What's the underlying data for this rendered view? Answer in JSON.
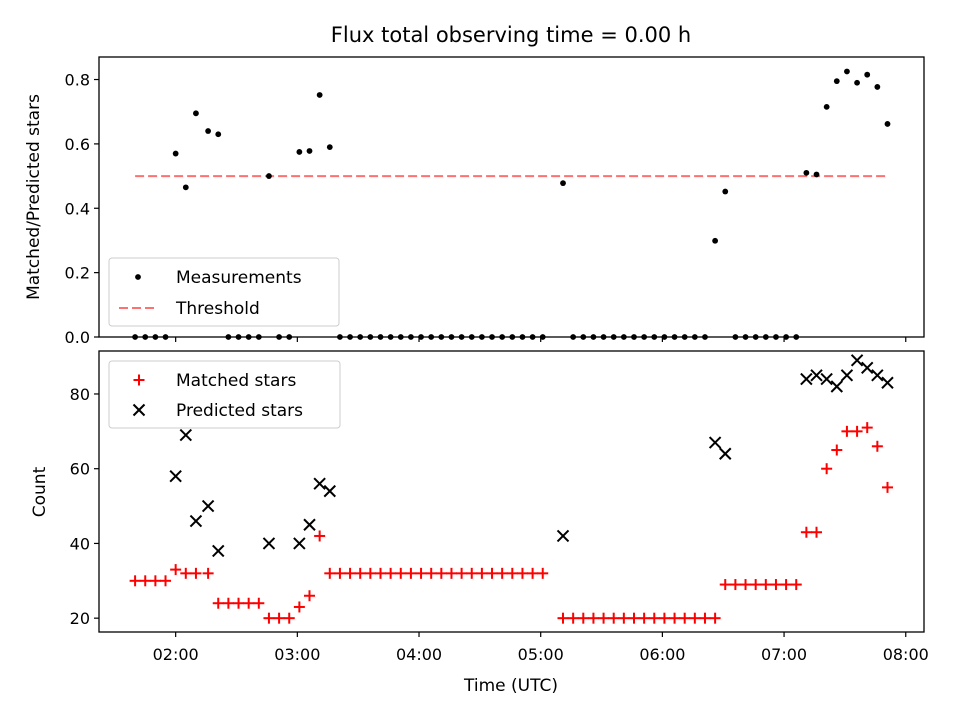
{
  "title": "Flux total observing time = 0.00 h",
  "chart_data": [
    {
      "type": "scatter",
      "ylabel": "Matched/Predicted stars",
      "xlabel": "",
      "ylim": [
        0,
        0.87
      ],
      "xlim_hours": [
        1.37,
        8.15
      ],
      "yticks": [
        0.0,
        0.2,
        0.4,
        0.6,
        0.8
      ],
      "ytick_labels": [
        "0.0",
        "0.2",
        "0.4",
        "0.6",
        "0.8"
      ],
      "legend_position": "lower-left",
      "series": [
        {
          "name": "Measurements",
          "color": "#000000",
          "marker": "dot",
          "points": [
            [
              "01:40",
              0.0
            ],
            [
              "01:45",
              0.0
            ],
            [
              "01:50",
              0.0
            ],
            [
              "01:55",
              0.0
            ],
            [
              "02:00",
              0.57
            ],
            [
              "02:05",
              0.465
            ],
            [
              "02:10",
              0.695
            ],
            [
              "02:16",
              0.64
            ],
            [
              "02:21",
              0.63
            ],
            [
              "02:26",
              0.0
            ],
            [
              "02:31",
              0.0
            ],
            [
              "02:36",
              0.0
            ],
            [
              "02:41",
              0.0
            ],
            [
              "02:46",
              0.5
            ],
            [
              "02:51",
              0.0
            ],
            [
              "02:56",
              0.0
            ],
            [
              "03:01",
              0.575
            ],
            [
              "03:06",
              0.578
            ],
            [
              "03:11",
              0.752
            ],
            [
              "03:16",
              0.59
            ],
            [
              "03:21",
              0.0
            ],
            [
              "03:26",
              0.0
            ],
            [
              "03:31",
              0.0
            ],
            [
              "03:36",
              0.0
            ],
            [
              "03:41",
              0.0
            ],
            [
              "03:46",
              0.0
            ],
            [
              "03:51",
              0.0
            ],
            [
              "03:56",
              0.0
            ],
            [
              "04:01",
              0.0
            ],
            [
              "04:06",
              0.0
            ],
            [
              "04:11",
              0.0
            ],
            [
              "04:16",
              0.0
            ],
            [
              "04:21",
              0.0
            ],
            [
              "04:26",
              0.0
            ],
            [
              "04:31",
              0.0
            ],
            [
              "04:36",
              0.0
            ],
            [
              "04:41",
              0.0
            ],
            [
              "04:46",
              0.0
            ],
            [
              "04:51",
              0.0
            ],
            [
              "04:56",
              0.0
            ],
            [
              "05:01",
              0.0
            ],
            [
              "05:11",
              0.478
            ],
            [
              "05:16",
              0.0
            ],
            [
              "05:21",
              0.0
            ],
            [
              "05:26",
              0.0
            ],
            [
              "05:31",
              0.0
            ],
            [
              "05:36",
              0.0
            ],
            [
              "05:41",
              0.0
            ],
            [
              "05:46",
              0.0
            ],
            [
              "05:51",
              0.0
            ],
            [
              "05:56",
              0.0
            ],
            [
              "06:01",
              0.0
            ],
            [
              "06:06",
              0.0
            ],
            [
              "06:11",
              0.0
            ],
            [
              "06:16",
              0.0
            ],
            [
              "06:21",
              0.0
            ],
            [
              "06:26",
              0.299
            ],
            [
              "06:31",
              0.452
            ],
            [
              "06:36",
              0.0
            ],
            [
              "06:41",
              0.0
            ],
            [
              "06:46",
              0.0
            ],
            [
              "06:51",
              0.0
            ],
            [
              "06:56",
              0.0
            ],
            [
              "07:01",
              0.0
            ],
            [
              "07:06",
              0.0
            ],
            [
              "07:11",
              0.51
            ],
            [
              "07:16",
              0.505
            ],
            [
              "07:21",
              0.715
            ],
            [
              "07:26",
              0.795
            ],
            [
              "07:31",
              0.825
            ],
            [
              "07:36",
              0.79
            ],
            [
              "07:41",
              0.815
            ],
            [
              "07:46",
              0.777
            ],
            [
              "07:51",
              0.662
            ]
          ]
        },
        {
          "name": "Threshold",
          "color": "#ff7070",
          "style": "dashed",
          "points": [
            [
              "01:40",
              0.5
            ],
            [
              "07:51",
              0.5
            ]
          ]
        }
      ]
    },
    {
      "type": "scatter",
      "ylabel": "Count",
      "xlabel": "Time (UTC)",
      "ylim": [
        16.3,
        91.5
      ],
      "xlim_hours": [
        1.37,
        8.15
      ],
      "yticks": [
        20,
        40,
        60,
        80
      ],
      "ytick_labels": [
        "20",
        "40",
        "60",
        "80"
      ],
      "xticks_hours": [
        2,
        3,
        4,
        5,
        6,
        7,
        8
      ],
      "xtick_labels": [
        "02:00",
        "03:00",
        "04:00",
        "05:00",
        "06:00",
        "07:00",
        "08:00"
      ],
      "legend_position": "top-left",
      "series": [
        {
          "name": "Matched stars",
          "color": "#ff0000",
          "marker": "plus",
          "points": [
            [
              "01:40",
              30
            ],
            [
              "01:45",
              30
            ],
            [
              "01:50",
              30
            ],
            [
              "01:55",
              30
            ],
            [
              "02:00",
              33
            ],
            [
              "02:05",
              32
            ],
            [
              "02:10",
              32
            ],
            [
              "02:16",
              32
            ],
            [
              "02:21",
              24
            ],
            [
              "02:26",
              24
            ],
            [
              "02:31",
              24
            ],
            [
              "02:36",
              24
            ],
            [
              "02:41",
              24
            ],
            [
              "02:46",
              20
            ],
            [
              "02:51",
              20
            ],
            [
              "02:56",
              20
            ],
            [
              "03:01",
              23
            ],
            [
              "03:06",
              26
            ],
            [
              "03:11",
              42
            ],
            [
              "03:16",
              32
            ],
            [
              "03:21",
              32
            ],
            [
              "03:26",
              32
            ],
            [
              "03:31",
              32
            ],
            [
              "03:36",
              32
            ],
            [
              "03:41",
              32
            ],
            [
              "03:46",
              32
            ],
            [
              "03:51",
              32
            ],
            [
              "03:56",
              32
            ],
            [
              "04:01",
              32
            ],
            [
              "04:06",
              32
            ],
            [
              "04:11",
              32
            ],
            [
              "04:16",
              32
            ],
            [
              "04:21",
              32
            ],
            [
              "04:26",
              32
            ],
            [
              "04:31",
              32
            ],
            [
              "04:36",
              32
            ],
            [
              "04:41",
              32
            ],
            [
              "04:46",
              32
            ],
            [
              "04:51",
              32
            ],
            [
              "04:56",
              32
            ],
            [
              "05:01",
              32
            ],
            [
              "05:11",
              20
            ],
            [
              "05:16",
              20
            ],
            [
              "05:21",
              20
            ],
            [
              "05:26",
              20
            ],
            [
              "05:31",
              20
            ],
            [
              "05:36",
              20
            ],
            [
              "05:41",
              20
            ],
            [
              "05:46",
              20
            ],
            [
              "05:51",
              20
            ],
            [
              "05:56",
              20
            ],
            [
              "06:01",
              20
            ],
            [
              "06:06",
              20
            ],
            [
              "06:11",
              20
            ],
            [
              "06:16",
              20
            ],
            [
              "06:21",
              20
            ],
            [
              "06:26",
              20
            ],
            [
              "06:31",
              29
            ],
            [
              "06:36",
              29
            ],
            [
              "06:41",
              29
            ],
            [
              "06:46",
              29
            ],
            [
              "06:51",
              29
            ],
            [
              "06:56",
              29
            ],
            [
              "07:01",
              29
            ],
            [
              "07:06",
              29
            ],
            [
              "07:11",
              43
            ],
            [
              "07:16",
              43
            ],
            [
              "07:21",
              60
            ],
            [
              "07:26",
              65
            ],
            [
              "07:31",
              70
            ],
            [
              "07:36",
              70
            ],
            [
              "07:41",
              71
            ],
            [
              "07:46",
              66
            ],
            [
              "07:51",
              55
            ]
          ]
        },
        {
          "name": "Predicted stars",
          "color": "#000000",
          "marker": "x",
          "points": [
            [
              "02:00",
              58
            ],
            [
              "02:05",
              69
            ],
            [
              "02:10",
              46
            ],
            [
              "02:16",
              50
            ],
            [
              "02:21",
              38
            ],
            [
              "02:46",
              40
            ],
            [
              "03:01",
              40
            ],
            [
              "03:06",
              45
            ],
            [
              "03:11",
              56
            ],
            [
              "03:16",
              54
            ],
            [
              "05:11",
              42
            ],
            [
              "06:26",
              67
            ],
            [
              "06:31",
              64
            ],
            [
              "07:11",
              84
            ],
            [
              "07:16",
              85
            ],
            [
              "07:21",
              84
            ],
            [
              "07:26",
              82
            ],
            [
              "07:31",
              85
            ],
            [
              "07:36",
              89
            ],
            [
              "07:41",
              87
            ],
            [
              "07:46",
              85
            ],
            [
              "07:51",
              83
            ]
          ]
        }
      ]
    }
  ]
}
